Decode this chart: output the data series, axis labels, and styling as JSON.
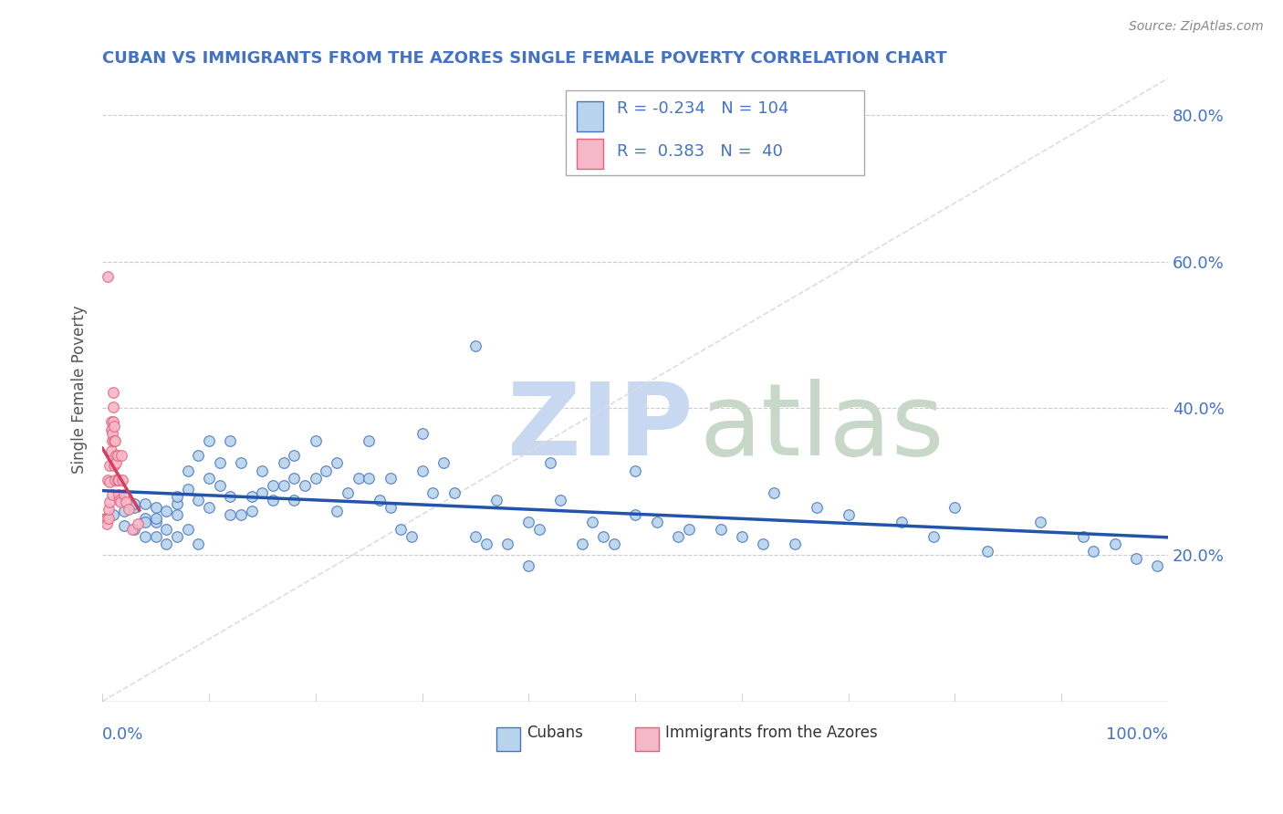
{
  "title": "CUBAN VS IMMIGRANTS FROM THE AZORES SINGLE FEMALE POVERTY CORRELATION CHART",
  "source": "Source: ZipAtlas.com",
  "ylabel": "Single Female Poverty",
  "cubans_R": -0.234,
  "cubans_N": 104,
  "azores_R": 0.383,
  "azores_N": 40,
  "blue_fill": "#B8D4EC",
  "pink_fill": "#F4B8C8",
  "blue_edge": "#4472C4",
  "pink_edge": "#E8607A",
  "blue_line": "#2255AA",
  "pink_line": "#D04060",
  "ref_line_color": "#CCCCCC",
  "background": "#FFFFFF",
  "grid_color": "#CCCCCC",
  "title_color": "#4472C4",
  "right_axis_color": "#4472C4",
  "watermark_zip_color": "#C8D8F0",
  "watermark_atlas_color": "#C8D8C8",
  "cubans_x": [
    0.01,
    0.02,
    0.02,
    0.03,
    0.03,
    0.03,
    0.04,
    0.04,
    0.04,
    0.04,
    0.05,
    0.05,
    0.05,
    0.05,
    0.06,
    0.06,
    0.06,
    0.07,
    0.07,
    0.07,
    0.07,
    0.08,
    0.08,
    0.08,
    0.09,
    0.09,
    0.09,
    0.1,
    0.1,
    0.1,
    0.11,
    0.11,
    0.12,
    0.12,
    0.12,
    0.13,
    0.13,
    0.14,
    0.14,
    0.15,
    0.15,
    0.16,
    0.16,
    0.17,
    0.17,
    0.18,
    0.18,
    0.18,
    0.19,
    0.2,
    0.2,
    0.21,
    0.22,
    0.22,
    0.23,
    0.24,
    0.25,
    0.25,
    0.26,
    0.27,
    0.27,
    0.28,
    0.29,
    0.3,
    0.3,
    0.31,
    0.32,
    0.33,
    0.35,
    0.35,
    0.36,
    0.37,
    0.38,
    0.4,
    0.4,
    0.41,
    0.42,
    0.43,
    0.45,
    0.46,
    0.47,
    0.48,
    0.5,
    0.5,
    0.52,
    0.54,
    0.55,
    0.58,
    0.6,
    0.62,
    0.63,
    0.65,
    0.67,
    0.7,
    0.75,
    0.78,
    0.8,
    0.83,
    0.88,
    0.92,
    0.93,
    0.95,
    0.97,
    0.99
  ],
  "cubans_y": [
    0.255,
    0.24,
    0.26,
    0.265,
    0.235,
    0.27,
    0.27,
    0.25,
    0.225,
    0.245,
    0.245,
    0.225,
    0.25,
    0.265,
    0.235,
    0.215,
    0.26,
    0.225,
    0.255,
    0.27,
    0.28,
    0.235,
    0.29,
    0.315,
    0.215,
    0.335,
    0.275,
    0.265,
    0.305,
    0.355,
    0.295,
    0.325,
    0.255,
    0.28,
    0.355,
    0.255,
    0.325,
    0.28,
    0.26,
    0.285,
    0.315,
    0.275,
    0.295,
    0.295,
    0.325,
    0.305,
    0.275,
    0.335,
    0.295,
    0.305,
    0.355,
    0.315,
    0.26,
    0.325,
    0.285,
    0.305,
    0.305,
    0.355,
    0.275,
    0.265,
    0.305,
    0.235,
    0.225,
    0.315,
    0.365,
    0.285,
    0.325,
    0.285,
    0.485,
    0.225,
    0.215,
    0.275,
    0.215,
    0.185,
    0.245,
    0.235,
    0.325,
    0.275,
    0.215,
    0.245,
    0.225,
    0.215,
    0.315,
    0.255,
    0.245,
    0.225,
    0.235,
    0.235,
    0.225,
    0.215,
    0.285,
    0.215,
    0.265,
    0.255,
    0.245,
    0.225,
    0.265,
    0.205,
    0.245,
    0.225,
    0.205,
    0.215,
    0.195,
    0.185
  ],
  "azores_x": [
    0.002,
    0.003,
    0.004,
    0.004,
    0.005,
    0.005,
    0.006,
    0.006,
    0.007,
    0.007,
    0.007,
    0.008,
    0.008,
    0.008,
    0.009,
    0.009,
    0.009,
    0.01,
    0.01,
    0.01,
    0.011,
    0.011,
    0.011,
    0.012,
    0.012,
    0.013,
    0.013,
    0.014,
    0.014,
    0.015,
    0.015,
    0.016,
    0.017,
    0.018,
    0.019,
    0.02,
    0.022,
    0.025,
    0.028,
    0.033
  ],
  "azores_y": [
    0.25,
    0.248,
    0.25,
    0.242,
    0.58,
    0.302,
    0.25,
    0.262,
    0.272,
    0.322,
    0.3,
    0.342,
    0.37,
    0.382,
    0.282,
    0.355,
    0.365,
    0.382,
    0.422,
    0.402,
    0.355,
    0.375,
    0.322,
    0.302,
    0.355,
    0.335,
    0.325,
    0.302,
    0.335,
    0.302,
    0.282,
    0.275,
    0.272,
    0.335,
    0.302,
    0.282,
    0.272,
    0.262,
    0.235,
    0.242
  ],
  "xlim": [
    0.0,
    1.0
  ],
  "ylim": [
    0.0,
    0.85
  ],
  "ytick_vals": [
    0.2,
    0.4,
    0.6,
    0.8
  ],
  "ytick_labels": [
    "20.0%",
    "40.0%",
    "60.0%",
    "80.0%"
  ]
}
